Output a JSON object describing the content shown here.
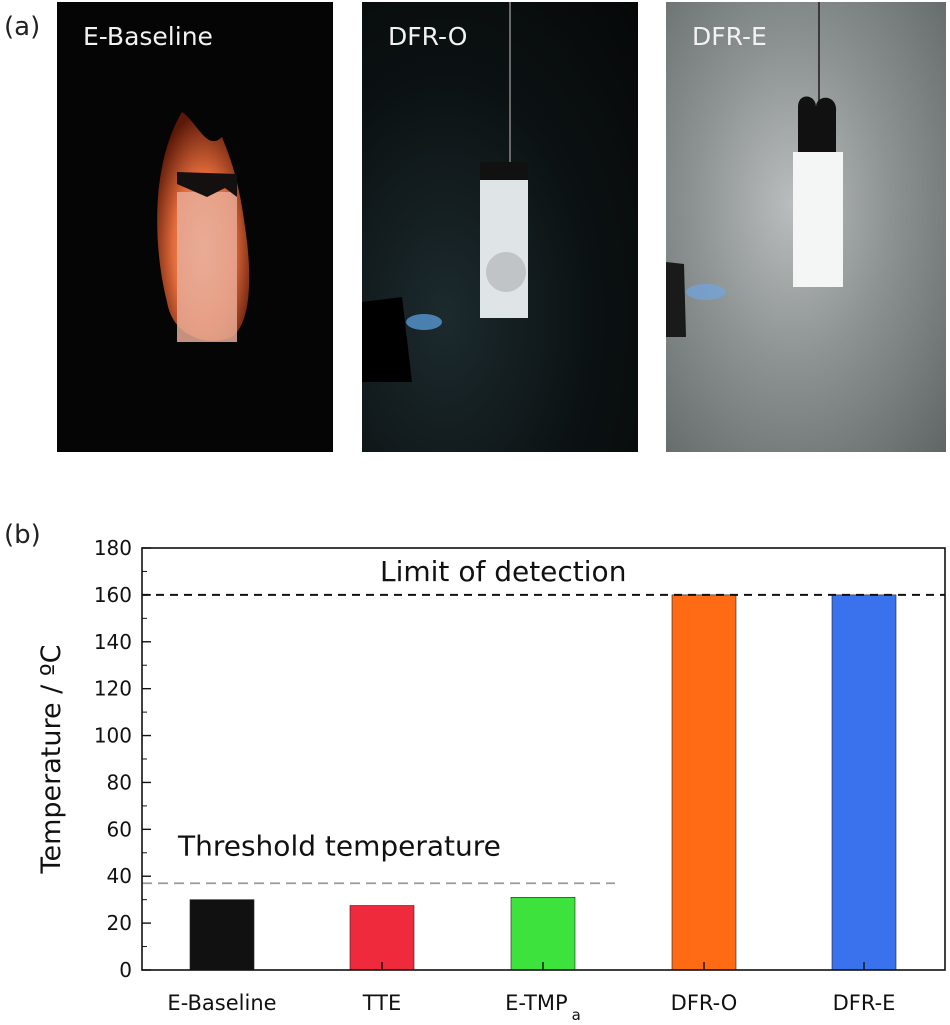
{
  "panel_a": {
    "label": "(a)",
    "photos": [
      {
        "caption": "E-Baseline"
      },
      {
        "caption": "DFR-O"
      },
      {
        "caption": "DFR-E"
      }
    ]
  },
  "panel_b": {
    "label": "(b)"
  },
  "colors": {
    "E-Baseline": "#111111",
    "TTE": "#ee2a3c",
    "E-TMPa": "#3ee23c",
    "DFR-O": "#ff6a14",
    "DFR-E": "#3a72ee"
  },
  "chart_data": {
    "type": "bar",
    "title": "",
    "xlabel": "",
    "ylabel": "Temperature / ºC",
    "ylim": [
      0,
      180
    ],
    "yticks": [
      0,
      20,
      40,
      60,
      80,
      100,
      120,
      140,
      160,
      180
    ],
    "categories": [
      "E-Baseline",
      "TTE",
      "E-TMPa",
      "DFR-O",
      "DFR-E"
    ],
    "category_labels": [
      {
        "main": "E-Baseline",
        "sub": ""
      },
      {
        "main": "TTE",
        "sub": ""
      },
      {
        "main": "E-TMP",
        "sub": "a"
      },
      {
        "main": "DFR-O",
        "sub": ""
      },
      {
        "main": "DFR-E",
        "sub": ""
      }
    ],
    "values": [
      30,
      27.5,
      31,
      160,
      160
    ],
    "reference_lines": [
      {
        "name": "limit",
        "value": 160,
        "label": "Limit of detection"
      },
      {
        "name": "threshold",
        "value": 37,
        "label": "Threshold temperature"
      }
    ]
  }
}
